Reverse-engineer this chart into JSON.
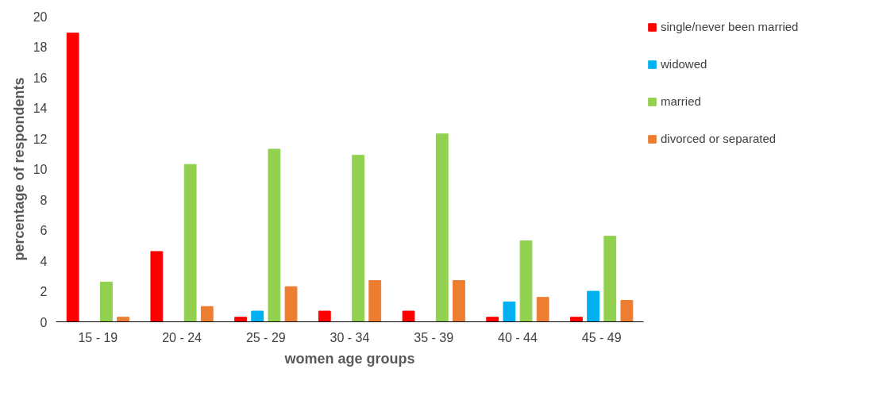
{
  "chart_data": {
    "type": "bar",
    "xlabel": "women age groups",
    "ylabel": "percentage of respondents",
    "categories": [
      "15 - 19",
      "20 - 24",
      "25 - 29",
      "30 - 34",
      "35 - 39",
      "40 - 44",
      "45 - 49"
    ],
    "series": [
      {
        "name": "single/never been married",
        "color": "#ff0000",
        "values": [
          18.9,
          4.6,
          0.3,
          0.7,
          0.7,
          0.3,
          0.3
        ]
      },
      {
        "name": "widowed",
        "color": "#00b0f0",
        "values": [
          0,
          0,
          0.7,
          0,
          0,
          1.3,
          2.0
        ]
      },
      {
        "name": "married",
        "color": "#92d050",
        "values": [
          2.6,
          10.3,
          11.3,
          10.9,
          12.3,
          5.3,
          5.6
        ]
      },
      {
        "name": "divorced or separated",
        "color": "#ed7d31",
        "values": [
          0.3,
          1.0,
          2.3,
          2.7,
          2.7,
          1.6,
          1.4
        ]
      }
    ],
    "ylim": [
      0,
      20
    ],
    "yticks": [
      0,
      2,
      4,
      6,
      8,
      10,
      12,
      14,
      16,
      18,
      20
    ],
    "grid": false,
    "legend": "top right"
  }
}
